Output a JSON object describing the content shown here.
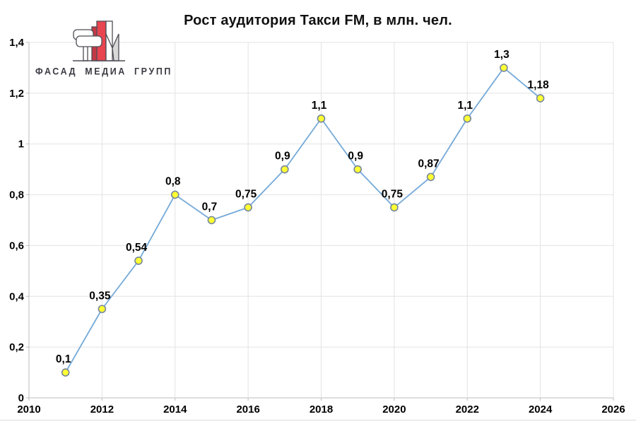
{
  "logo": {
    "company": "ФАСАД МЕДИА ГРУПП",
    "icon": "fm-building-logo",
    "colors": {
      "red": "#e84550",
      "dark_red": "#c13a45",
      "outline": "#4d4d55",
      "gray_leg": "#d9d9d9",
      "text": "#3b3b44"
    }
  },
  "chart_data": {
    "type": "line",
    "title": "Рост аудитория Такси FM, в млн. чел.",
    "x": [
      2011,
      2012,
      2013,
      2014,
      2015,
      2016,
      2017,
      2018,
      2019,
      2020,
      2021,
      2022,
      2023,
      2024
    ],
    "values": [
      0.1,
      0.35,
      0.54,
      0.8,
      0.7,
      0.75,
      0.9,
      1.1,
      0.9,
      0.75,
      0.87,
      1.1,
      1.3,
      1.18
    ],
    "point_labels": [
      "0,1",
      "0,35",
      "0,54",
      "0,8",
      "0,7",
      "0,75",
      "0,9",
      "1,1",
      "0,9",
      "0,75",
      "0,87",
      "1,1",
      "1,3",
      "1,18"
    ],
    "x_ticks": [
      "2010",
      "2012",
      "2014",
      "2016",
      "2018",
      "2020",
      "2022",
      "2024",
      "2026"
    ],
    "x_tick_values": [
      2010,
      2012,
      2014,
      2016,
      2018,
      2020,
      2022,
      2024,
      2026
    ],
    "y_ticks": [
      "0",
      "0,2",
      "0,4",
      "0,6",
      "0,8",
      "1",
      "1,2",
      "1,4"
    ],
    "y_tick_values": [
      0,
      0.2,
      0.4,
      0.6,
      0.8,
      1.0,
      1.2,
      1.4
    ],
    "xlim": [
      2010,
      2026
    ],
    "ylim": [
      0,
      1.4
    ],
    "grid": true,
    "legend": "none",
    "line_color": "#74a9d8",
    "marker_fill": "#ffff33",
    "marker_stroke": "#76879b",
    "grid_color": "#e3e3e3",
    "axis_color": "#bdbdbd",
    "label_color": "#000000"
  }
}
